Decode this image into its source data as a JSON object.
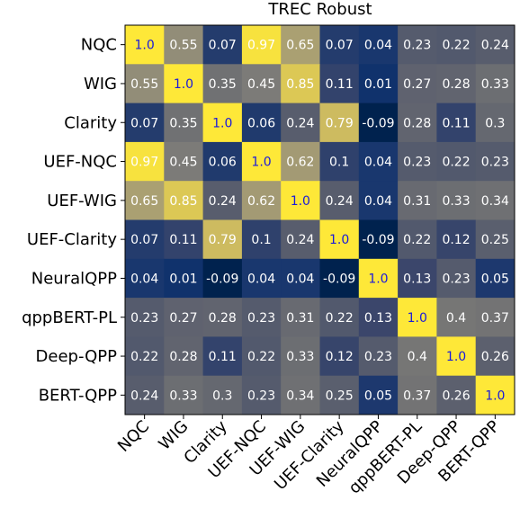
{
  "chart_data": {
    "type": "heatmap",
    "title": "TREC Robust",
    "row_labels": [
      "NQC",
      "WIG",
      "Clarity",
      "UEF-NQC",
      "UEF-WIG",
      "UEF-Clarity",
      "NeuralQPP",
      "qppBERT-PL",
      "Deep-QPP",
      "BERT-QPP"
    ],
    "col_labels": [
      "NQC",
      "WIG",
      "Clarity",
      "UEF-NQC",
      "UEF-WIG",
      "UEF-Clarity",
      "NeuralQPP",
      "qppBERT-PL",
      "Deep-QPP",
      "BERT-QPP"
    ],
    "values": [
      [
        1.0,
        0.55,
        0.07,
        0.97,
        0.65,
        0.07,
        0.04,
        0.23,
        0.22,
        0.24
      ],
      [
        0.55,
        1.0,
        0.35,
        0.45,
        0.85,
        0.11,
        0.01,
        0.27,
        0.28,
        0.33
      ],
      [
        0.07,
        0.35,
        1.0,
        0.06,
        0.24,
        0.79,
        -0.09,
        0.28,
        0.11,
        0.3
      ],
      [
        0.97,
        0.45,
        0.06,
        1.0,
        0.62,
        0.1,
        0.04,
        0.23,
        0.22,
        0.23
      ],
      [
        0.65,
        0.85,
        0.24,
        0.62,
        1.0,
        0.24,
        0.04,
        0.31,
        0.33,
        0.34
      ],
      [
        0.07,
        0.11,
        0.79,
        0.1,
        0.24,
        1.0,
        -0.09,
        0.22,
        0.12,
        0.25
      ],
      [
        0.04,
        0.01,
        -0.09,
        0.04,
        0.04,
        -0.09,
        1.0,
        0.13,
        0.23,
        0.05
      ],
      [
        0.23,
        0.27,
        0.28,
        0.23,
        0.31,
        0.22,
        0.13,
        1.0,
        0.4,
        0.37
      ],
      [
        0.22,
        0.28,
        0.11,
        0.22,
        0.33,
        0.12,
        0.23,
        0.4,
        1.0,
        0.26
      ],
      [
        0.24,
        0.33,
        0.3,
        0.23,
        0.34,
        0.25,
        0.05,
        0.37,
        0.26,
        1.0
      ]
    ],
    "labels": [
      [
        "1.0",
        "0.55",
        "0.07",
        "0.97",
        "0.65",
        "0.07",
        "0.04",
        "0.23",
        "0.22",
        "0.24"
      ],
      [
        "0.55",
        "1.0",
        "0.35",
        "0.45",
        "0.85",
        "0.11",
        "0.01",
        "0.27",
        "0.28",
        "0.33"
      ],
      [
        "0.07",
        "0.35",
        "1.0",
        "0.06",
        "0.24",
        "0.79",
        "-0.09",
        "0.28",
        "0.11",
        "0.3"
      ],
      [
        "0.97",
        "0.45",
        "0.06",
        "1.0",
        "0.62",
        "0.1",
        "0.04",
        "0.23",
        "0.22",
        "0.23"
      ],
      [
        "0.65",
        "0.85",
        "0.24",
        "0.62",
        "1.0",
        "0.24",
        "0.04",
        "0.31",
        "0.33",
        "0.34"
      ],
      [
        "0.07",
        "0.11",
        "0.79",
        "0.1",
        "0.24",
        "1.0",
        "-0.09",
        "0.22",
        "0.12",
        "0.25"
      ],
      [
        "0.04",
        "0.01",
        "-0.09",
        "0.04",
        "0.04",
        "-0.09",
        "1.0",
        "0.13",
        "0.23",
        "0.05"
      ],
      [
        "0.23",
        "0.27",
        "0.28",
        "0.23",
        "0.31",
        "0.22",
        "0.13",
        "1.0",
        "0.4",
        "0.37"
      ],
      [
        "0.22",
        "0.28",
        "0.11",
        "0.22",
        "0.33",
        "0.12",
        "0.23",
        "0.4",
        "1.0",
        "0.26"
      ],
      [
        "0.24",
        "0.33",
        "0.3",
        "0.23",
        "0.34",
        "0.25",
        "0.05",
        "0.37",
        "0.26",
        "1.0"
      ]
    ],
    "colormap": "cividis",
    "value_range": [
      -0.09,
      1.0
    ],
    "diagonal_text_color": "#1a1adb",
    "offdiagonal_text_color": "#ffffff",
    "grid": false,
    "legend": "none"
  }
}
